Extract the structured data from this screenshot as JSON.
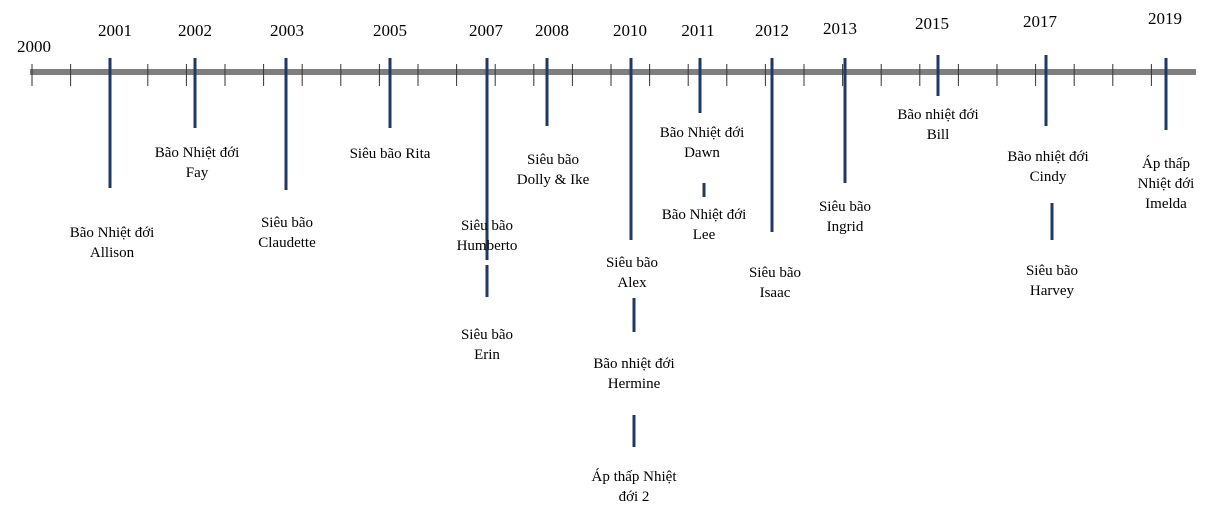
{
  "timeline": {
    "start_year": "2000",
    "events": [
      {
        "year": "2001",
        "storms": [
          "Bão Nhiệt đới\nAllison"
        ]
      },
      {
        "year": "2002",
        "storms": [
          "Bão Nhiệt đới\nFay"
        ]
      },
      {
        "year": "2003",
        "storms": [
          "Siêu bão\nClaudette"
        ]
      },
      {
        "year": "2005",
        "storms": [
          "Siêu bão Rita"
        ]
      },
      {
        "year": "2007",
        "storms": [
          "Siêu bão\nHumberto",
          "Siêu bão\nErin"
        ]
      },
      {
        "year": "2008",
        "storms": [
          "Siêu bão\nDolly & Ike"
        ]
      },
      {
        "year": "2010",
        "storms": [
          "Siêu bão\nAlex",
          "Bão nhiệt đới\nHermine",
          "Áp thấp Nhiệt\nđới 2"
        ]
      },
      {
        "year": "2011",
        "storms": [
          "Bão Nhiệt đới\nDawn",
          "Bão Nhiệt đới\nLee"
        ]
      },
      {
        "year": "2012",
        "storms": [
          "Siêu bão\nIsaac"
        ]
      },
      {
        "year": "2013",
        "storms": [
          "Siêu bão\nIngrid"
        ]
      },
      {
        "year": "2015",
        "storms": [
          "Bão nhiệt đới\nBill"
        ]
      },
      {
        "year": "2017",
        "storms": [
          "Bão nhiệt đới\nCindy",
          "Siêu bão\nHarvey"
        ]
      },
      {
        "year": "2019",
        "storms": [
          "Áp thấp\nNhiệt đới\nImelda"
        ]
      }
    ]
  }
}
